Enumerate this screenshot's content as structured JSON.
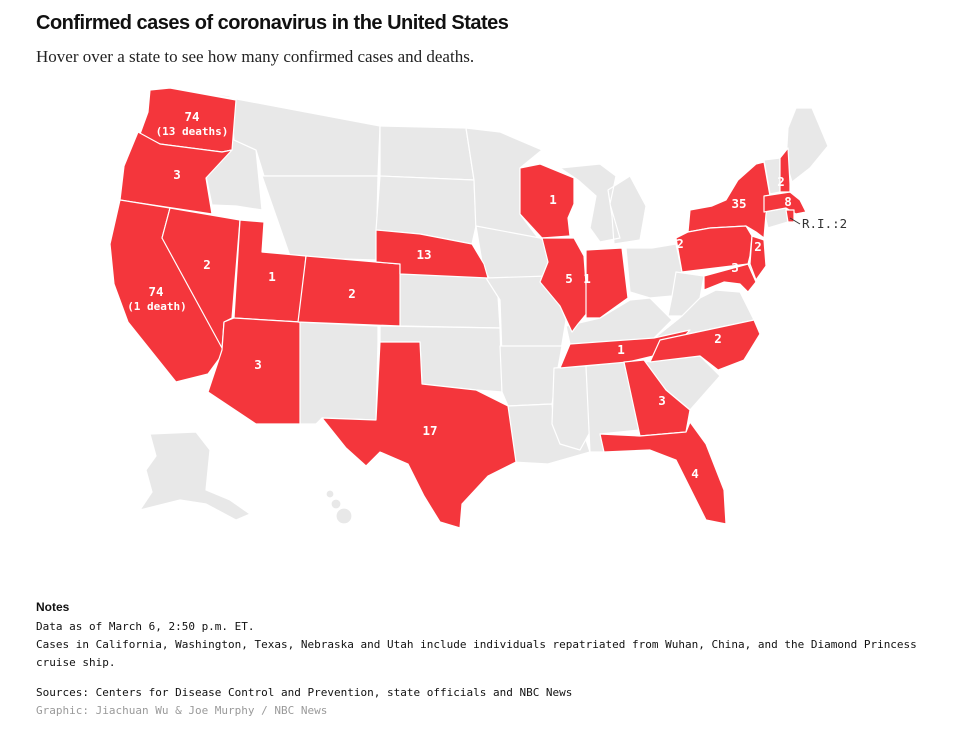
{
  "header": {
    "title": "Confirmed cases of coronavirus in the United States",
    "subtitle": "Hover over a state to see how many confirmed cases and deaths."
  },
  "colors": {
    "cases": "#f4363c",
    "no_cases": "#e8e8e8"
  },
  "map": {
    "labels": {
      "wa_cases": "74",
      "wa_deaths": "(13 deaths)",
      "or": "3",
      "ca_cases": "74",
      "ca_deaths": "(1 death)",
      "nv": "2",
      "ut": "1",
      "az": "3",
      "co": "2",
      "ne": "13",
      "tx": "17",
      "wi": "1",
      "il": "5",
      "in": "1",
      "tn": "1",
      "nc": "2",
      "ga": "3",
      "fl": "4",
      "ny": "35",
      "pa": "2",
      "nj": "2",
      "md": "3",
      "ma": "8",
      "nh": "2",
      "ri": "R.I.:2"
    }
  },
  "notes": {
    "heading": "Notes",
    "date": "Data as of March 6, 2:50 p.m. ET.",
    "repatriated": "Cases in California, Washington, Texas, Nebraska and Utah include individuals repatriated from Wuhan, China, and the Diamond Princess cruise ship.",
    "sources": "Sources: Centers for Disease Control and Prevention, state officials and NBC News",
    "credit": "Graphic: Jiachuan Wu & Joe Murphy / NBC News"
  }
}
